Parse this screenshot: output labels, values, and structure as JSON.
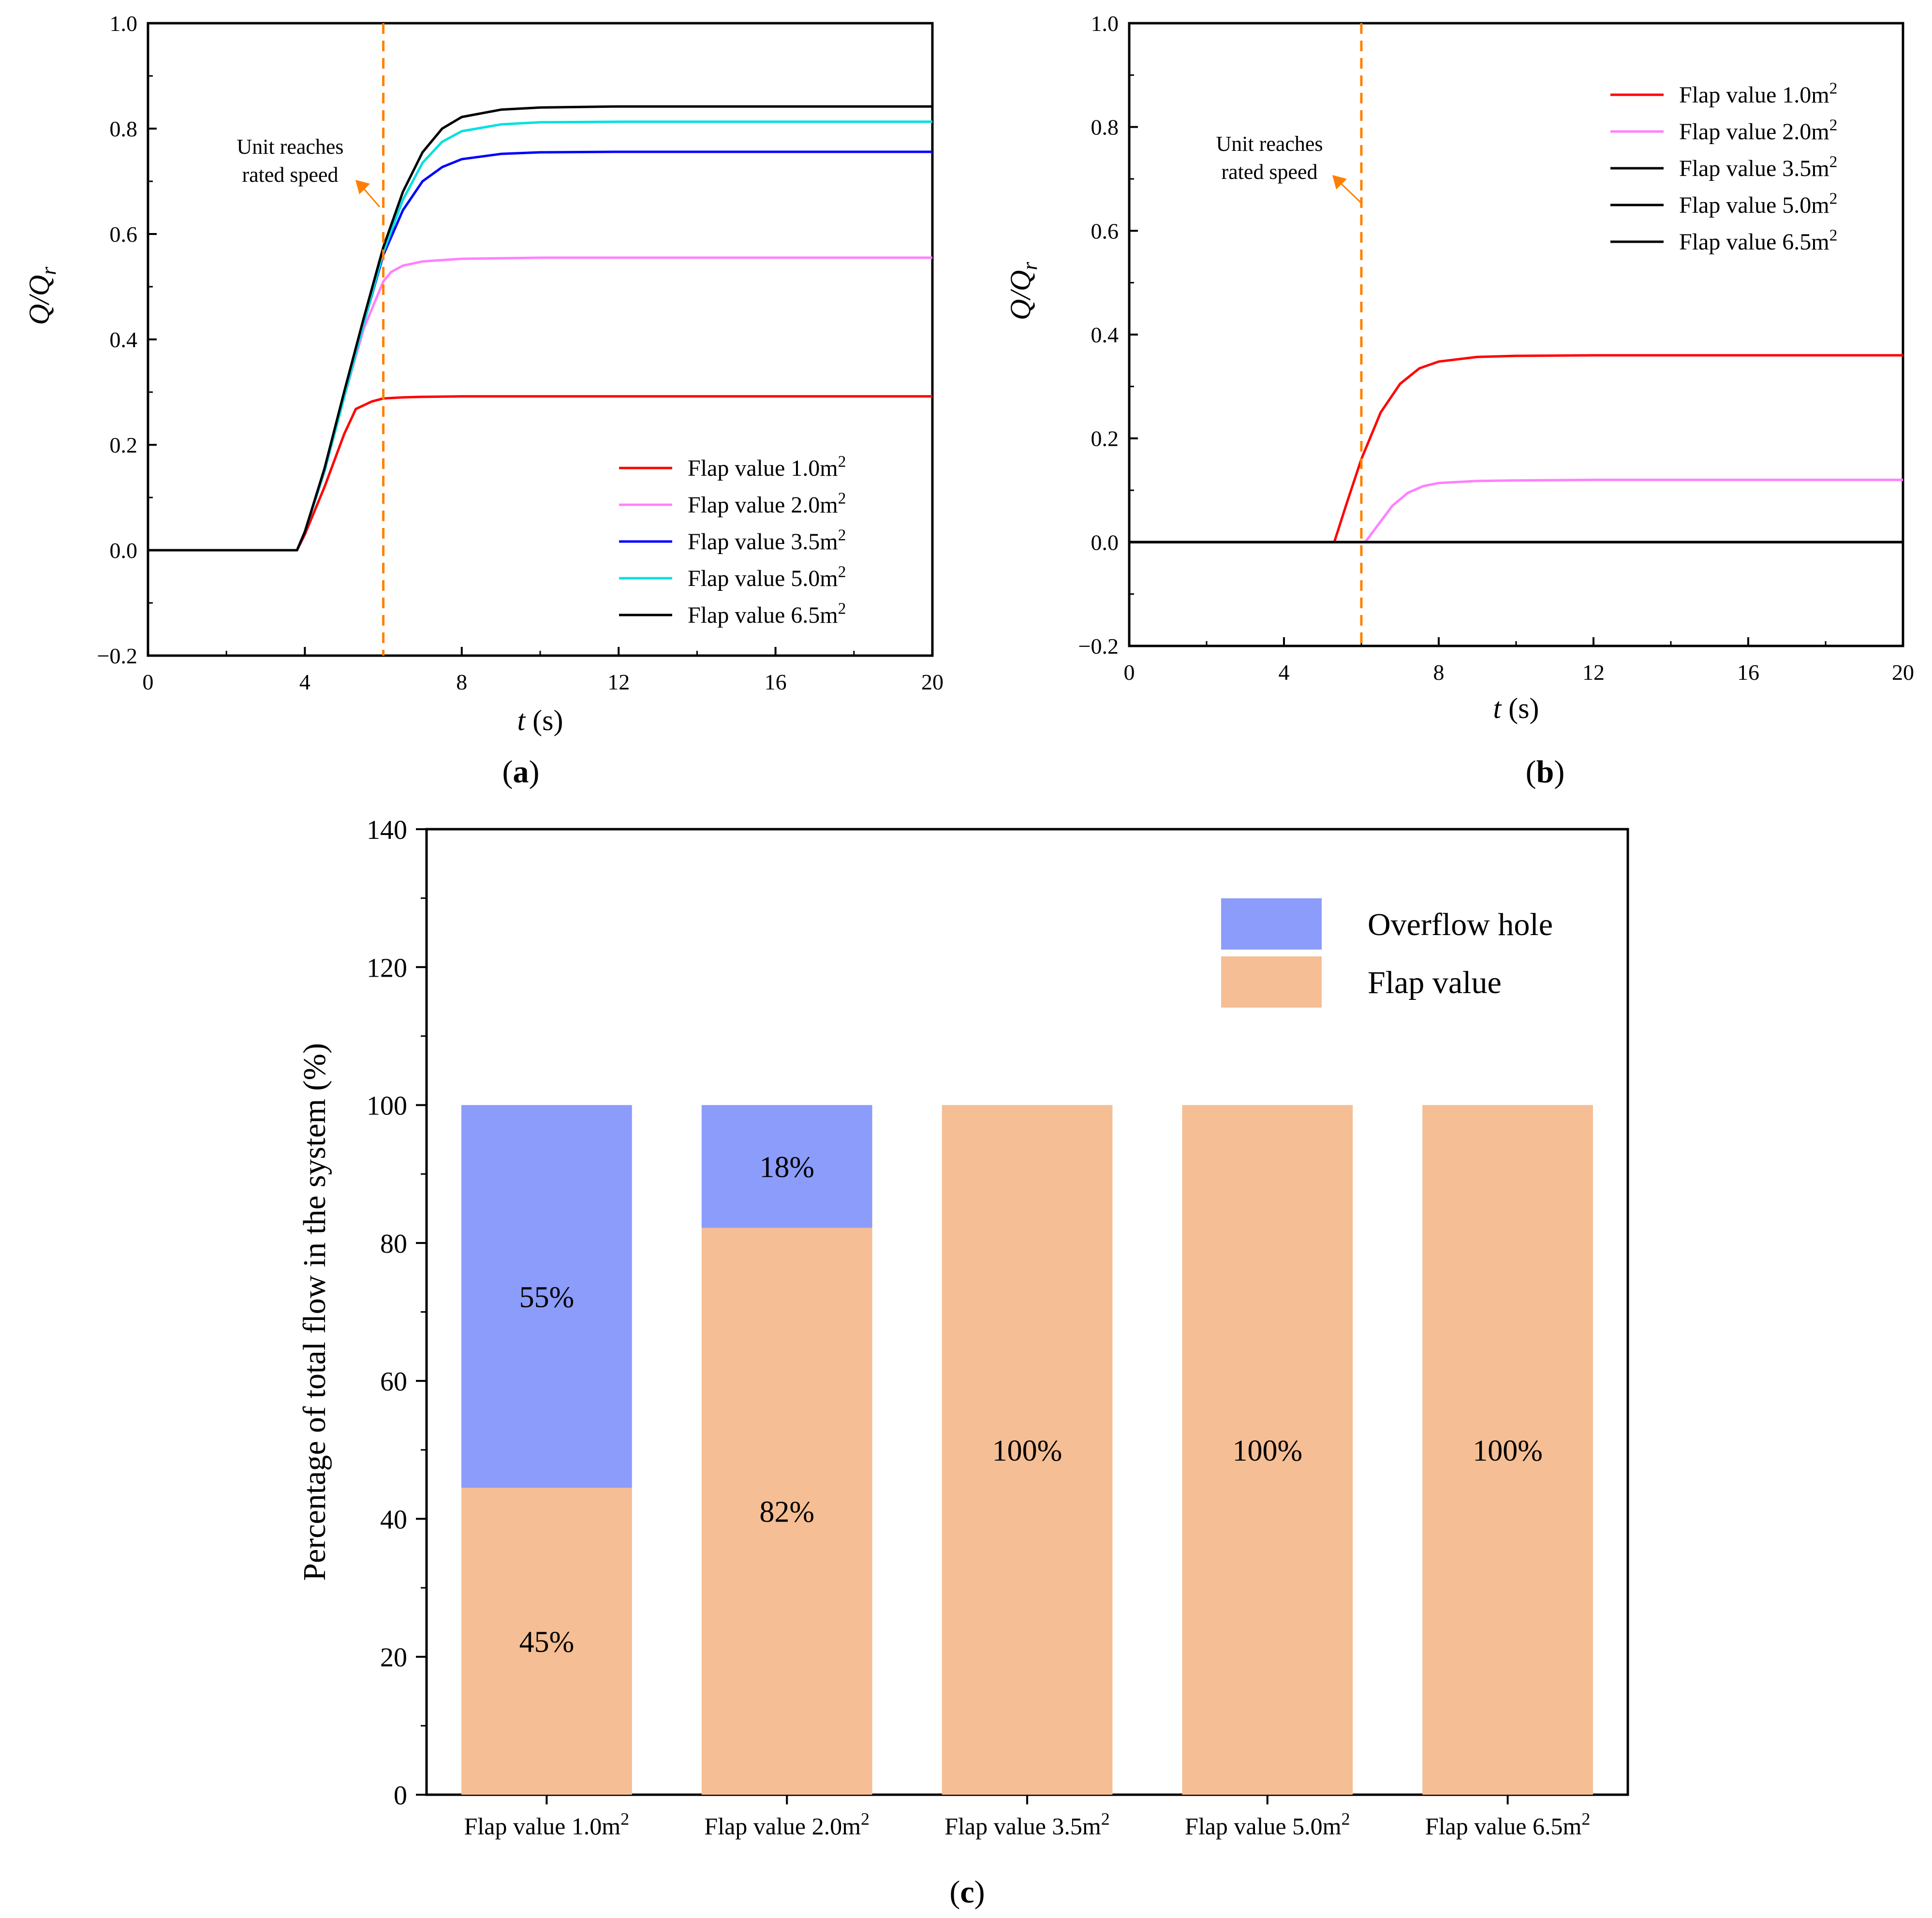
{
  "chart_data": [
    {
      "type": "line",
      "panel_label": "a",
      "xlabel_var": "t",
      "xlabel_unit": " (s)",
      "ylabel": "Q/Q",
      "ylabel_sub": "r",
      "xlim": [
        0,
        20
      ],
      "ylim": [
        -0.2,
        1.0
      ],
      "xticks": [
        0,
        4,
        8,
        12,
        16,
        20
      ],
      "yticks": [
        -0.2,
        0.0,
        0.2,
        0.4,
        0.6,
        0.8,
        1.0
      ],
      "ytick_labels": [
        "−0.2",
        "0.0",
        "0.2",
        "0.4",
        "0.6",
        "0.8",
        "1.0"
      ],
      "grid": false,
      "legend_position": "bottom-right",
      "annotation": {
        "lines": [
          "Unit reaches",
          "rated speed"
        ],
        "x": 6.0
      },
      "series": [
        {
          "name": "Flap value 1.0m",
          "sup": "2",
          "color": "#ff0000",
          "x": [
            0,
            3.8,
            4.0,
            4.5,
            5.0,
            5.3,
            5.7,
            6.0,
            6.5,
            7,
            8,
            10,
            12,
            16,
            20
          ],
          "y": [
            0,
            0,
            0.03,
            0.12,
            0.22,
            0.268,
            0.282,
            0.288,
            0.29,
            0.291,
            0.292,
            0.292,
            0.292,
            0.292,
            0.292
          ]
        },
        {
          "name": "Flap value 2.0m",
          "sup": "2",
          "color": "#ff80ff",
          "x": [
            0,
            3.8,
            4.0,
            4.5,
            5.0,
            5.5,
            6.0,
            6.2,
            6.5,
            7,
            8,
            10,
            12,
            16,
            20
          ],
          "y": [
            0,
            0,
            0.035,
            0.15,
            0.29,
            0.42,
            0.51,
            0.528,
            0.54,
            0.548,
            0.553,
            0.555,
            0.555,
            0.555,
            0.555
          ]
        },
        {
          "name": "Flap value 3.5m",
          "sup": "2",
          "color": "#0000ff",
          "x": [
            0,
            3.8,
            4.0,
            4.5,
            5.0,
            5.5,
            6.0,
            6.5,
            7,
            7.5,
            8,
            9,
            10,
            12,
            16,
            20
          ],
          "y": [
            0,
            0,
            0.035,
            0.15,
            0.29,
            0.43,
            0.56,
            0.645,
            0.7,
            0.727,
            0.742,
            0.752,
            0.755,
            0.756,
            0.756,
            0.756
          ]
        },
        {
          "name": "Flap value 5.0m",
          "sup": "2",
          "color": "#00e0e0",
          "x": [
            0,
            3.8,
            4.0,
            4.5,
            5.0,
            5.5,
            6.0,
            6.5,
            7,
            7.5,
            8,
            9,
            10,
            12,
            16,
            20
          ],
          "y": [
            0,
            0,
            0.035,
            0.15,
            0.29,
            0.43,
            0.565,
            0.665,
            0.735,
            0.775,
            0.795,
            0.808,
            0.812,
            0.813,
            0.813,
            0.813
          ]
        },
        {
          "name": "Flap value 6.5m",
          "sup": "2",
          "color": "#000000",
          "x": [
            0,
            3.8,
            4.0,
            4.5,
            5.0,
            5.5,
            6.0,
            6.5,
            7,
            7.5,
            8,
            9,
            10,
            12,
            16,
            20
          ],
          "y": [
            0,
            0,
            0.035,
            0.155,
            0.3,
            0.44,
            0.575,
            0.68,
            0.755,
            0.8,
            0.822,
            0.836,
            0.84,
            0.842,
            0.842,
            0.842
          ]
        }
      ]
    },
    {
      "type": "line",
      "panel_label": "b",
      "xlabel_var": "t",
      "xlabel_unit": " (s)",
      "ylabel": "Q/Q",
      "ylabel_sub": "r",
      "xlim": [
        0,
        20
      ],
      "ylim": [
        -0.2,
        1.0
      ],
      "xticks": [
        0,
        4,
        8,
        12,
        16,
        20
      ],
      "yticks": [
        -0.2,
        0.0,
        0.2,
        0.4,
        0.6,
        0.8,
        1.0
      ],
      "ytick_labels": [
        "−0.2",
        "0.0",
        "0.2",
        "0.4",
        "0.6",
        "0.8",
        "1.0"
      ],
      "grid": false,
      "legend_position": "top-right",
      "annotation": {
        "lines": [
          "Unit reaches",
          "rated speed"
        ],
        "x": 6.0
      },
      "series": [
        {
          "name": "Flap value 1.0m",
          "sup": "2",
          "color": "#ff0000",
          "x": [
            0,
            5.3,
            5.6,
            6.0,
            6.5,
            7,
            7.5,
            8,
            9,
            10,
            12,
            16,
            20
          ],
          "y": [
            0,
            0,
            0.07,
            0.16,
            0.25,
            0.305,
            0.335,
            0.348,
            0.357,
            0.359,
            0.36,
            0.36,
            0.36
          ]
        },
        {
          "name": "Flap value 2.0m",
          "sup": "2",
          "color": "#ff80ff",
          "x": [
            0,
            6.1,
            6.4,
            6.8,
            7.2,
            7.6,
            8,
            9,
            10,
            12,
            16,
            20
          ],
          "y": [
            0,
            0,
            0.03,
            0.07,
            0.095,
            0.108,
            0.114,
            0.118,
            0.119,
            0.12,
            0.12,
            0.12
          ]
        },
        {
          "name": "Flap value 3.5m",
          "sup": "2",
          "color": "#000000",
          "x": [
            0,
            20
          ],
          "y": [
            0,
            0
          ]
        },
        {
          "name": "Flap value 5.0m",
          "sup": "2",
          "color": "#000000",
          "x": [
            0,
            20
          ],
          "y": [
            0,
            0
          ]
        },
        {
          "name": "Flap value 6.5m",
          "sup": "2",
          "color": "#000000",
          "x": [
            0,
            20
          ],
          "y": [
            0,
            0
          ]
        }
      ]
    },
    {
      "type": "bar",
      "stacked": true,
      "panel_label": "c",
      "ylabel": "Percentage of total flow in the system (%)",
      "ylim": [
        0,
        140
      ],
      "yticks": [
        0,
        20,
        40,
        60,
        80,
        100,
        120,
        140
      ],
      "grid": false,
      "legend_position": "top-right",
      "categories": [
        {
          "label": "Flap value 1.0m",
          "sup": "2"
        },
        {
          "label": "Flap value 2.0m",
          "sup": "2"
        },
        {
          "label": "Flap value 3.5m",
          "sup": "2"
        },
        {
          "label": "Flap value 5.0m",
          "sup": "2"
        },
        {
          "label": "Flap value 6.5m",
          "sup": "2"
        }
      ],
      "series": [
        {
          "name": "Flap value",
          "color": "#f5be94",
          "values": [
            44.5,
            82.2,
            100,
            100,
            100
          ],
          "labels": [
            "45%",
            "82%",
            "100%",
            "100%",
            "100%"
          ]
        },
        {
          "name": "Overflow hole",
          "color": "#8c9cfb",
          "values": [
            55.5,
            17.8,
            0,
            0,
            0
          ],
          "labels": [
            "55%",
            "18%",
            "",
            "",
            ""
          ]
        }
      ]
    }
  ]
}
